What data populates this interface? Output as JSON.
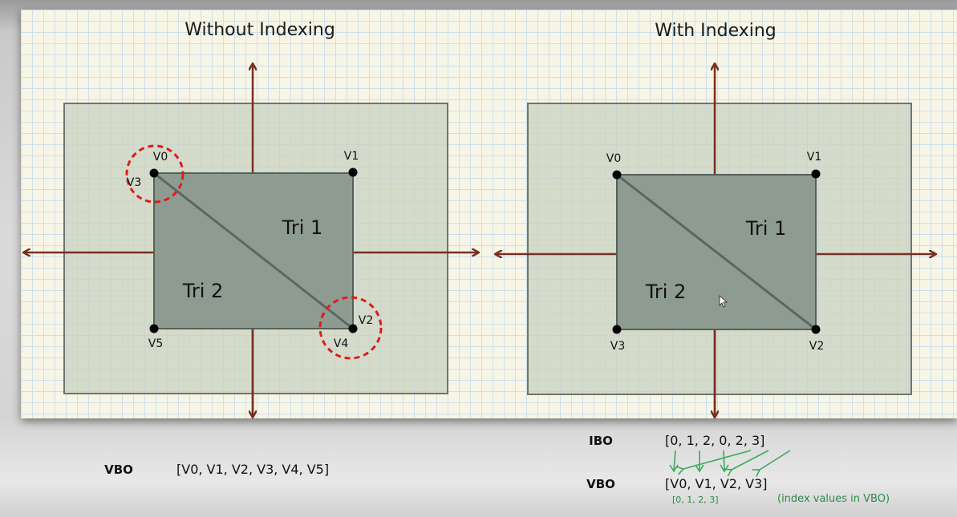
{
  "left_diagram": {
    "title": "Without Indexing",
    "vertices": {
      "v0": "V0",
      "v1": "V1",
      "v2": "V2",
      "v3": "V3",
      "v4": "V4",
      "v5": "V5"
    },
    "tri1": "Tri 1",
    "tri2": "Tri 2"
  },
  "right_diagram": {
    "title": "With Indexing",
    "vertices": {
      "v0": "V0",
      "v1": "V1",
      "v2": "V2",
      "v3": "V3"
    },
    "tri1": "Tri 1",
    "tri2": "Tri 2"
  },
  "left_buffers": {
    "vbo_label": "VBO",
    "vbo_value": "[V0, V1, V2, V3, V4, V5]"
  },
  "right_buffers": {
    "ibo_label": "IBO",
    "ibo_value": "[0,   1,   2,   0,  2,   3]",
    "vbo_label": "VBO",
    "vbo_value": "[V0, V1, V2, V3]",
    "index_values": "[0,     1,      2,      3]",
    "index_note": "(index values in VBO)"
  },
  "colors": {
    "axis": "#7a2e22",
    "quad_fill": "#8e9b90",
    "outer_fill": "#c9d2c0",
    "highlight": "#e01b1b",
    "mapping_arrow": "#3aaa5a"
  }
}
